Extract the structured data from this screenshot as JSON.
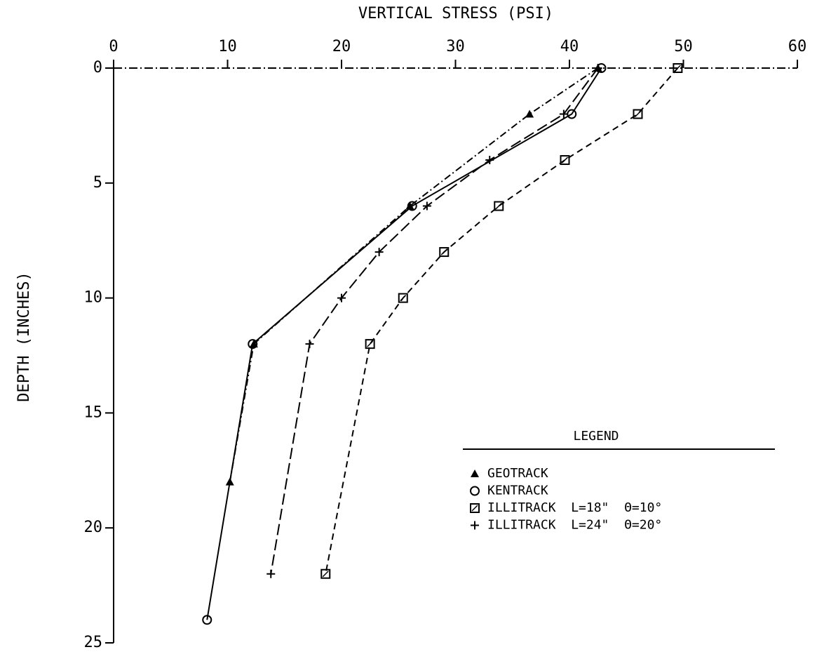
{
  "chart_data": {
    "type": "line",
    "xlabel": "VERTICAL STRESS (PSI)",
    "ylabel": "DEPTH (INCHES)",
    "xlim": [
      0,
      60
    ],
    "xticks": [
      0,
      10,
      20,
      30,
      40,
      50,
      60
    ],
    "ylim": [
      0,
      25
    ],
    "yticks": [
      0,
      5,
      10,
      15,
      20,
      25
    ],
    "y_inverted": true,
    "legend_title": "LEGEND",
    "series": [
      {
        "name": "GEOTRACK",
        "color": "#000000",
        "marker": "triangle",
        "dash": "10 4 2 4",
        "x": [
          42.5,
          36.5,
          26,
          12.3,
          10.2
        ],
        "y": [
          0,
          2,
          6,
          12,
          18
        ]
      },
      {
        "name": "KENTRACK",
        "color": "#000000",
        "marker": "circle",
        "dash": "none",
        "x": [
          42.8,
          40.2,
          26.2,
          12.2,
          8.2
        ],
        "y": [
          0,
          2,
          6,
          12,
          24
        ]
      },
      {
        "name": "ILLITRACK  L=18\"  Θ=10°",
        "color": "#000000",
        "marker": "square",
        "dash": "9 6",
        "x": [
          49.5,
          46,
          39.6,
          33.8,
          29,
          25.4,
          22.5,
          18.6
        ],
        "y": [
          0,
          2,
          4,
          6,
          8,
          10,
          12,
          22
        ]
      },
      {
        "name": "ILLITRACK  L=24\"  Θ=20°",
        "color": "#000000",
        "marker": "plus",
        "dash": "16 6",
        "x": [
          42.5,
          39.5,
          33,
          27.5,
          23.3,
          20,
          17.2,
          13.8
        ],
        "y": [
          0,
          2,
          4,
          6,
          8,
          10,
          12,
          22
        ]
      }
    ]
  }
}
